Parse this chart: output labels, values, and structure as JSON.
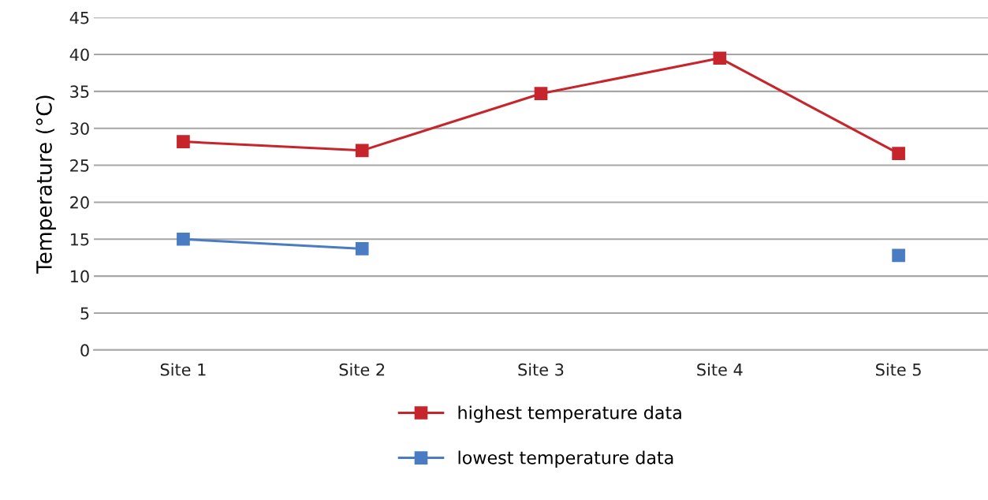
{
  "chart_data": {
    "type": "line",
    "ylabel": "Temperature (°C)",
    "categories": [
      "Site 1",
      "Site 2",
      "Site 3",
      "Site 4",
      "Site 5"
    ],
    "series": [
      {
        "name": "highest temperature data",
        "color": "#c7252c",
        "values": [
          28.2,
          27.0,
          34.7,
          39.5,
          26.6
        ]
      },
      {
        "name": "lowest temperature data",
        "color": "#4a7cc3",
        "values": [
          15.0,
          13.7,
          null,
          null,
          12.8
        ]
      }
    ],
    "ylim": [
      0,
      45
    ],
    "yticks": [
      0,
      5,
      10,
      15,
      20,
      25,
      30,
      35,
      40,
      45
    ],
    "grid": "y",
    "legend": "bottom",
    "marker": "square",
    "line_style": "solid"
  }
}
